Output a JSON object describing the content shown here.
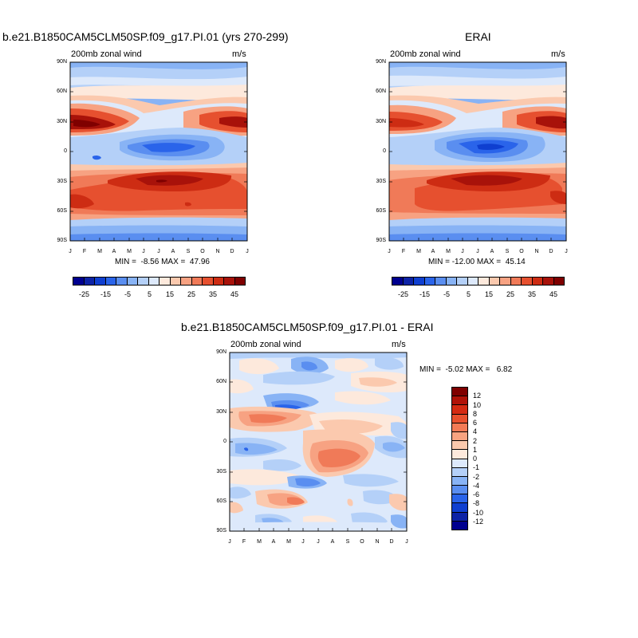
{
  "chart_data": [
    {
      "type": "heatmap",
      "title": "b.e21.B1850CAM5CLM50SP.f09_g17.PI.01 (yrs 270-299)",
      "left_string": "200mb zonal wind",
      "right_string": "m/s",
      "x_tick_labels": [
        "J",
        "F",
        "M",
        "A",
        "M",
        "J",
        "J",
        "A",
        "S",
        "O",
        "N",
        "D",
        "J"
      ],
      "y_tick_labels": [
        "90N",
        "60N",
        "30N",
        "0",
        "30S",
        "60S",
        "90S"
      ],
      "ylim": [
        -90,
        90
      ],
      "min_max_text": "MIN =  -8.56 MAX =  47.96",
      "min": -8.56,
      "max": 47.96,
      "colorbar_orientation": "horizontal",
      "colorbar_labels": [
        "-25",
        "-15",
        "-5",
        "5",
        "15",
        "25",
        "35",
        "45"
      ],
      "colorbar_levels": [
        -30,
        -25,
        -20,
        -15,
        -10,
        -5,
        0,
        5,
        10,
        15,
        20,
        25,
        30,
        35,
        40,
        45,
        50
      ],
      "colors": [
        "#00008f",
        "#0d23a6",
        "#0f3fd0",
        "#2a64ea",
        "#5a8ef0",
        "#88b3f5",
        "#b4d0f8",
        "#dde9fb",
        "#fde9dc",
        "#fbc9ae",
        "#f7a282",
        "#f07a58",
        "#e6502f",
        "#cd2c13",
        "#a8120a",
        "#7f0000"
      ]
    },
    {
      "type": "heatmap",
      "title": "ERAI",
      "left_string": "200mb zonal wind",
      "right_string": "m/s",
      "x_tick_labels": [
        "J",
        "F",
        "M",
        "A",
        "M",
        "J",
        "J",
        "A",
        "S",
        "O",
        "N",
        "D",
        "J"
      ],
      "y_tick_labels": [
        "90N",
        "60N",
        "30N",
        "0",
        "30S",
        "60S",
        "90S"
      ],
      "ylim": [
        -90,
        90
      ],
      "min_max_text": "MIN = -12.00 MAX =  45.14",
      "min": -12.0,
      "max": 45.14,
      "colorbar_orientation": "horizontal",
      "colorbar_labels": [
        "-25",
        "-15",
        "-5",
        "5",
        "15",
        "25",
        "35",
        "45"
      ],
      "colors": [
        "#00008f",
        "#0d23a6",
        "#0f3fd0",
        "#2a64ea",
        "#5a8ef0",
        "#88b3f5",
        "#b4d0f8",
        "#dde9fb",
        "#fde9dc",
        "#fbc9ae",
        "#f7a282",
        "#f07a58",
        "#e6502f",
        "#cd2c13",
        "#a8120a",
        "#7f0000"
      ]
    },
    {
      "type": "heatmap",
      "title": "b.e21.B1850CAM5CLM50SP.f09_g17.PI.01 - ERAI",
      "left_string": "200mb zonal wind",
      "right_string": "m/s",
      "x_tick_labels": [
        "J",
        "F",
        "M",
        "A",
        "M",
        "J",
        "J",
        "A",
        "S",
        "O",
        "N",
        "D",
        "J"
      ],
      "y_tick_labels": [
        "90N",
        "60N",
        "30N",
        "0",
        "30S",
        "60S",
        "90S"
      ],
      "ylim": [
        -90,
        90
      ],
      "min_max_text": "MIN =  -5.02 MAX =   6.82",
      "min": -5.02,
      "max": 6.82,
      "colorbar_orientation": "vertical",
      "colorbar_labels": [
        "12",
        "10",
        "8",
        "6",
        "4",
        "2",
        "1",
        "0",
        "-1",
        "-2",
        "-4",
        "-6",
        "-8",
        "-10",
        "-12"
      ],
      "colors": [
        "#7f0000",
        "#b01208",
        "#d42a12",
        "#e8502d",
        "#f27a55",
        "#f8a380",
        "#fbc9ad",
        "#fde9dc",
        "#dde9fb",
        "#b4d0f8",
        "#88b3f5",
        "#5a8ef0",
        "#2a64ea",
        "#0f3fd0",
        "#0d23a6",
        "#00008f"
      ]
    }
  ]
}
